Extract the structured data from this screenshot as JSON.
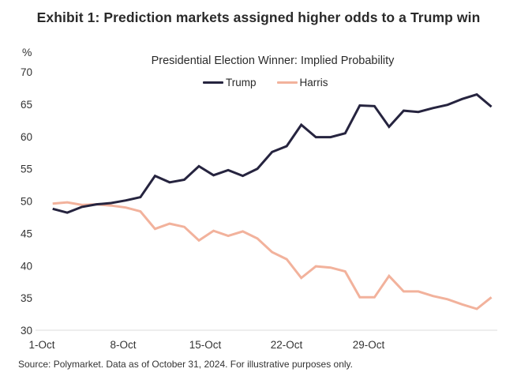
{
  "header": {
    "title": "Exhibit 1: Prediction markets assigned higher odds to a Trump win"
  },
  "footer": {
    "source": "Source: Polymarket. Data as of October 31, 2024. For illustrative purposes only."
  },
  "chart_data": {
    "type": "line",
    "title": "Presidential Election Winner: Implied Probability",
    "ylabel": "%",
    "xlabel": "",
    "ylim": [
      30,
      70
    ],
    "yticks": [
      30,
      35,
      40,
      45,
      50,
      55,
      60,
      65,
      70
    ],
    "xtick_labels": [
      "1-Oct",
      "8-Oct",
      "15-Oct",
      "22-Oct",
      "29-Oct"
    ],
    "grid": false,
    "legend_position": "top-center",
    "x": [
      "1-Oct",
      "2-Oct",
      "3-Oct",
      "4-Oct",
      "5-Oct",
      "6-Oct",
      "7-Oct",
      "8-Oct",
      "9-Oct",
      "10-Oct",
      "11-Oct",
      "12-Oct",
      "13-Oct",
      "14-Oct",
      "15-Oct",
      "16-Oct",
      "17-Oct",
      "18-Oct",
      "19-Oct",
      "20-Oct",
      "21-Oct",
      "22-Oct",
      "23-Oct",
      "24-Oct",
      "25-Oct",
      "26-Oct",
      "27-Oct",
      "28-Oct",
      "29-Oct",
      "30-Oct",
      "31-Oct"
    ],
    "series": [
      {
        "name": "Trump",
        "color": "#26243f",
        "values": [
          48.8,
          48.2,
          49.1,
          49.5,
          49.7,
          50.1,
          50.6,
          53.9,
          52.9,
          53.3,
          55.4,
          54.0,
          54.8,
          53.9,
          55.0,
          57.6,
          58.5,
          61.8,
          59.9,
          59.9,
          60.5,
          64.8,
          64.7,
          61.5,
          64.0,
          63.8,
          64.4,
          64.9,
          65.8,
          66.5,
          64.6
        ]
      },
      {
        "name": "Harris",
        "color": "#f2b29c",
        "values": [
          49.6,
          49.8,
          49.4,
          49.5,
          49.3,
          49.0,
          48.4,
          45.7,
          46.5,
          46.0,
          43.9,
          45.4,
          44.6,
          45.3,
          44.2,
          42.1,
          41.0,
          38.1,
          39.9,
          39.7,
          39.1,
          35.1,
          35.1,
          38.4,
          36.0,
          36.0,
          35.3,
          34.8,
          34.0,
          33.3,
          35.1
        ]
      }
    ]
  }
}
